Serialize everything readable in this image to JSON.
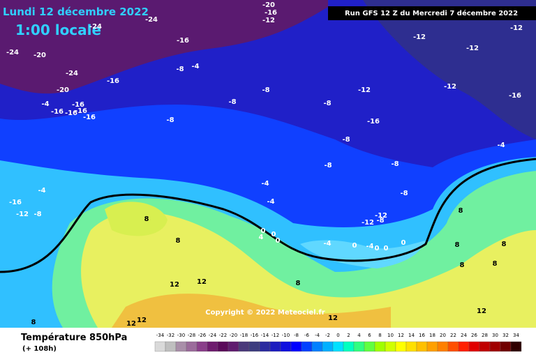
{
  "header": {
    "date": "Lundi 12 décembre 2022",
    "time": "1:00 locale",
    "run": "Run GFS 12 Z du Mercredi 7 décembre 2022"
  },
  "footer": {
    "title": "Température 850hPa",
    "lead": "(+ 108h)",
    "copyright": "Copyright © 2022 Meteociel.fr"
  },
  "scale": {
    "values": [
      -34,
      -32,
      -30,
      -28,
      -26,
      -24,
      -22,
      -20,
      -18,
      -16,
      -14,
      -12,
      -10,
      -8,
      -6,
      -4,
      -2,
      0,
      2,
      4,
      6,
      8,
      10,
      12,
      14,
      16,
      18,
      20,
      22,
      24,
      26,
      28,
      30,
      32,
      34
    ],
    "colors": [
      "#d9d9d9",
      "#bfbfbf",
      "#a98fa9",
      "#9b6b9b",
      "#8a3f8a",
      "#6e1c6e",
      "#5a0a5a",
      "#601d6f",
      "#4a3a7a",
      "#3d3d7f",
      "#2b2b9f",
      "#1d1dbf",
      "#0f0fdf",
      "#0000ff",
      "#0040ff",
      "#0080ff",
      "#00b0ff",
      "#00e0ff",
      "#00ffc0",
      "#30ff80",
      "#60ff40",
      "#a0ff00",
      "#d0ff00",
      "#ffff00",
      "#ffe000",
      "#ffc000",
      "#ffa000",
      "#ff8000",
      "#ff5000",
      "#ff2000",
      "#e00000",
      "#c00000",
      "#a00000",
      "#700000",
      "#300000"
    ]
  },
  "isotherm_labels": [
    "-20",
    "-16",
    "-12",
    "-24",
    "-24",
    "-16",
    "-24",
    "-20",
    "-8",
    "-4",
    "-24",
    "-16",
    "-20",
    "-8",
    "-12",
    "-12",
    "-16",
    "-4",
    "-16",
    "-16",
    "-16",
    "-16",
    "-16",
    "-8",
    "-8",
    "-16",
    "-8",
    "-8",
    "-4",
    "-8",
    "-8",
    "-4",
    "-4",
    "-4",
    "-8",
    "-16",
    "-12",
    "-8",
    "-12",
    "-12",
    "-8",
    "8",
    "8",
    "0",
    "0",
    "4",
    "0",
    "-4",
    "0",
    "-4",
    "0",
    "0",
    "0",
    "8",
    "12",
    "12",
    "8",
    "12",
    "12",
    "12",
    "12",
    "8",
    "8",
    "8",
    "8",
    "8",
    "-12",
    "-12",
    "-12"
  ]
}
